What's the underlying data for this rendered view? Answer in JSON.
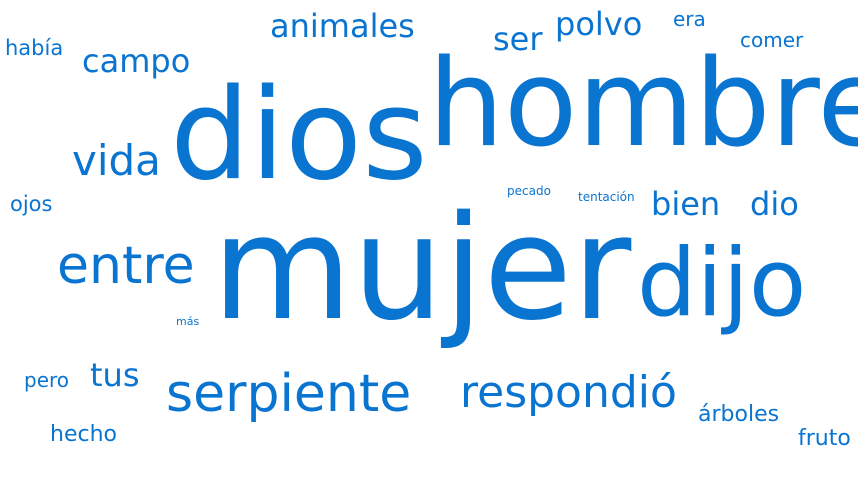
{
  "accent_color": "#0a74d1",
  "background_color": "#ffffff",
  "word_cloud": {
    "words": [
      {
        "text": "había"
      },
      {
        "text": "campo"
      },
      {
        "text": "animales"
      },
      {
        "text": "ser"
      },
      {
        "text": "polvo"
      },
      {
        "text": "era"
      },
      {
        "text": "comer"
      },
      {
        "text": "dios"
      },
      {
        "text": "hombre"
      },
      {
        "text": "vida"
      },
      {
        "text": "ojos"
      },
      {
        "text": "pecado"
      },
      {
        "text": "tentación"
      },
      {
        "text": "bien"
      },
      {
        "text": "dio"
      },
      {
        "text": "mujer"
      },
      {
        "text": "entre"
      },
      {
        "text": "dijo"
      },
      {
        "text": "más"
      },
      {
        "text": "pero"
      },
      {
        "text": "tus"
      },
      {
        "text": "serpiente"
      },
      {
        "text": "respondió"
      },
      {
        "text": "árboles"
      },
      {
        "text": "hecho"
      },
      {
        "text": "fruto"
      }
    ]
  }
}
